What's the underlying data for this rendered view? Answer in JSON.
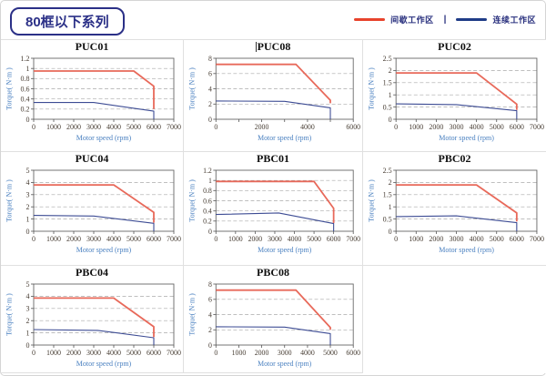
{
  "page": {
    "title": "80框以下系列"
  },
  "legend": {
    "separator": "|",
    "items": [
      {
        "label": "间歇工作区",
        "color": "#e8432c"
      },
      {
        "label": "连续工作区",
        "color": "#1f3c87"
      }
    ]
  },
  "axis_labels": {
    "x": "Motor speed (rpm)",
    "y": "Torque( N·m )"
  },
  "colors": {
    "accent_navy": "#2b3087",
    "intermittent_line": "#e8695a",
    "continuous_line": "#3d4c94",
    "cell_border": "#e0e0e0",
    "grid_dash": "#aaaaaa",
    "tick_text": "#473d33",
    "axis_label_text": "#4a80c0"
  },
  "chart_data": [
    {
      "type": "line",
      "title": "PUC01",
      "title_cursor": false,
      "xlabel": "Motor speed (rpm)",
      "ylabel": "Torque( N·m )",
      "xlim": [
        0,
        7000
      ],
      "ylim": [
        0,
        1.2
      ],
      "xminor_step": 1000,
      "xticks": [
        0,
        1000,
        2000,
        3000,
        4000,
        5000,
        6000,
        7000
      ],
      "xtick_labels": [
        "0",
        "1000",
        "2000",
        "3000",
        "4000",
        "5000",
        "6000",
        "7000"
      ],
      "yticks": [
        0,
        0.2,
        0.4,
        0.6,
        0.8,
        1,
        1.2
      ],
      "ytick_labels": [
        "0",
        "0.2",
        "0.4",
        "0.6",
        "0.8",
        "1",
        "1.2"
      ],
      "grid": "horizontal-dashed",
      "legend_position": "none",
      "series": [
        {
          "name": "间歇工作区",
          "color": "#e8695a",
          "width": 1.8,
          "points": [
            [
              0,
              0.95
            ],
            [
              5000,
              0.95
            ],
            [
              6000,
              0.65
            ],
            [
              6000,
              0.2
            ]
          ]
        },
        {
          "name": "连续工作区",
          "color": "#3d4c94",
          "width": 1.1,
          "points": [
            [
              0,
              0.33
            ],
            [
              3000,
              0.33
            ],
            [
              6000,
              0.16
            ],
            [
              6000,
              0
            ]
          ]
        }
      ]
    },
    {
      "type": "line",
      "title": "PUC08",
      "title_cursor": true,
      "xlabel": "Motor speed (rpm)",
      "ylabel": "Torque( N·m )",
      "xlim": [
        0,
        6000
      ],
      "ylim": [
        0,
        8
      ],
      "xminor_step": 1000,
      "xticks": [
        0,
        2000,
        4000,
        6000
      ],
      "xtick_labels": [
        "0",
        "2000",
        "4000",
        "6000"
      ],
      "yticks": [
        0,
        2,
        4,
        6,
        8
      ],
      "ytick_labels": [
        "0",
        "2",
        "4",
        "6",
        "8"
      ],
      "grid": "horizontal-dashed",
      "legend_position": "none",
      "series": [
        {
          "name": "间歇工作区",
          "color": "#e8695a",
          "width": 1.8,
          "points": [
            [
              0,
              7.2
            ],
            [
              3500,
              7.2
            ],
            [
              5000,
              2.5
            ],
            [
              5000,
              2.1
            ]
          ]
        },
        {
          "name": "连续工作区",
          "color": "#3d4c94",
          "width": 1.1,
          "points": [
            [
              0,
              2.4
            ],
            [
              3000,
              2.35
            ],
            [
              5000,
              1.5
            ],
            [
              5000,
              0
            ]
          ]
        }
      ]
    },
    {
      "type": "line",
      "title": "PUC02",
      "title_cursor": false,
      "xlabel": "Motor speed (rpm)",
      "ylabel": "Torque( N·m )",
      "xlim": [
        0,
        7000
      ],
      "ylim": [
        0,
        2.5
      ],
      "xminor_step": 1000,
      "xticks": [
        0,
        1000,
        2000,
        3000,
        4000,
        5000,
        6000,
        7000
      ],
      "xtick_labels": [
        "0",
        "1000",
        "2000",
        "3000",
        "4000",
        "5000",
        "6000",
        "7000"
      ],
      "yticks": [
        0,
        0.5,
        1,
        1.5,
        2,
        2.5
      ],
      "ytick_labels": [
        "0",
        "0.5",
        "1",
        "1.5",
        "2",
        "2.5"
      ],
      "grid": "horizontal-dashed",
      "legend_position": "none",
      "series": [
        {
          "name": "间歇工作区",
          "color": "#e8695a",
          "width": 1.8,
          "points": [
            [
              0,
              1.9
            ],
            [
              4000,
              1.9
            ],
            [
              6000,
              0.62
            ],
            [
              6000,
              0.38
            ]
          ]
        },
        {
          "name": "连续工作区",
          "color": "#3d4c94",
          "width": 1.1,
          "points": [
            [
              0,
              0.63
            ],
            [
              3000,
              0.6
            ],
            [
              6000,
              0.35
            ],
            [
              6000,
              0
            ]
          ]
        }
      ]
    },
    {
      "type": "line",
      "title": "PUC04",
      "title_cursor": false,
      "xlabel": "Motor speed (rpm)",
      "ylabel": "Torque( N·m )",
      "xlim": [
        0,
        7000
      ],
      "ylim": [
        0,
        5
      ],
      "xminor_step": 1000,
      "xticks": [
        0,
        1000,
        2000,
        3000,
        4000,
        5000,
        6000,
        7000
      ],
      "xtick_labels": [
        "0",
        "1000",
        "2000",
        "3000",
        "4000",
        "5000",
        "6000",
        "7000"
      ],
      "yticks": [
        0,
        1,
        2,
        3,
        4,
        5
      ],
      "ytick_labels": [
        "0",
        "1",
        "2",
        "3",
        "4",
        "5"
      ],
      "grid": "horizontal-dashed",
      "legend_position": "none",
      "series": [
        {
          "name": "间歇工作区",
          "color": "#e8695a",
          "width": 1.8,
          "points": [
            [
              0,
              3.8
            ],
            [
              4000,
              3.8
            ],
            [
              6000,
              1.55
            ],
            [
              6000,
              0.7
            ]
          ]
        },
        {
          "name": "连续工作区",
          "color": "#3d4c94",
          "width": 1.1,
          "points": [
            [
              0,
              1.3
            ],
            [
              3000,
              1.25
            ],
            [
              6000,
              0.65
            ],
            [
              6000,
              0
            ]
          ]
        }
      ]
    },
    {
      "type": "line",
      "title": "PBC01",
      "title_cursor": false,
      "xlabel": "Motor speed (rpm)",
      "ylabel": "Torque( N·m )",
      "xlim": [
        0,
        7000
      ],
      "ylim": [
        0,
        1.2
      ],
      "xminor_step": 1000,
      "xticks": [
        0,
        1000,
        2000,
        3000,
        4000,
        5000,
        6000,
        7000
      ],
      "xtick_labels": [
        "0",
        "1000",
        "2000",
        "3000",
        "4000",
        "5000",
        "6000",
        "7000"
      ],
      "yticks": [
        0,
        0.2,
        0.4,
        0.6,
        0.8,
        1,
        1.2
      ],
      "ytick_labels": [
        "0",
        "0.2",
        "0.4",
        "0.6",
        "0.8",
        "1",
        "1.2"
      ],
      "grid": "horizontal-dashed",
      "legend_position": "none",
      "series": [
        {
          "name": "间歇工作区",
          "color": "#e8695a",
          "width": 1.8,
          "points": [
            [
              0,
              0.98
            ],
            [
              5000,
              0.98
            ],
            [
              6000,
              0.45
            ],
            [
              6000,
              0.16
            ]
          ]
        },
        {
          "name": "连续工作区",
          "color": "#3d4c94",
          "width": 1.1,
          "points": [
            [
              0,
              0.33
            ],
            [
              3200,
              0.36
            ],
            [
              6000,
              0.15
            ],
            [
              6000,
              0
            ]
          ]
        }
      ]
    },
    {
      "type": "line",
      "title": "PBC02",
      "title_cursor": false,
      "xlabel": "Motor speed (rpm)",
      "ylabel": "Torque( N·m )",
      "xlim": [
        0,
        7000
      ],
      "ylim": [
        0,
        2.5
      ],
      "xminor_step": 1000,
      "xticks": [
        0,
        1000,
        2000,
        3000,
        4000,
        5000,
        6000,
        7000
      ],
      "xtick_labels": [
        "0",
        "1000",
        "2000",
        "3000",
        "4000",
        "5000",
        "6000",
        "7000"
      ],
      "yticks": [
        0,
        0.5,
        1,
        1.5,
        2,
        2.5
      ],
      "ytick_labels": [
        "0",
        "0.5",
        "1",
        "1.5",
        "2",
        "2.5"
      ],
      "grid": "horizontal-dashed",
      "legend_position": "none",
      "series": [
        {
          "name": "间歇工作区",
          "color": "#e8695a",
          "width": 1.8,
          "points": [
            [
              0,
              1.9
            ],
            [
              4000,
              1.9
            ],
            [
              6000,
              0.75
            ],
            [
              6000,
              0.4
            ]
          ]
        },
        {
          "name": "连续工作区",
          "color": "#3d4c94",
          "width": 1.1,
          "points": [
            [
              0,
              0.6
            ],
            [
              3000,
              0.63
            ],
            [
              6000,
              0.35
            ],
            [
              6000,
              0
            ]
          ]
        }
      ]
    },
    {
      "type": "line",
      "title": "PBC04",
      "title_cursor": false,
      "xlabel": "Motor speed (rpm)",
      "ylabel": "Torque( N·m )",
      "xlim": [
        0,
        7000
      ],
      "ylim": [
        0,
        5
      ],
      "xminor_step": 1000,
      "xticks": [
        0,
        1000,
        2000,
        3000,
        4000,
        5000,
        6000,
        7000
      ],
      "xtick_labels": [
        "0",
        "1000",
        "2000",
        "3000",
        "4000",
        "5000",
        "6000",
        "7000"
      ],
      "yticks": [
        0,
        1,
        2,
        3,
        4,
        5
      ],
      "ytick_labels": [
        "0",
        "1",
        "2",
        "3",
        "4",
        "5"
      ],
      "grid": "horizontal-dashed",
      "legend_position": "none",
      "series": [
        {
          "name": "间歇工作区",
          "color": "#e8695a",
          "width": 1.8,
          "points": [
            [
              0,
              3.85
            ],
            [
              4000,
              3.85
            ],
            [
              6000,
              1.5
            ],
            [
              6000,
              0.65
            ]
          ]
        },
        {
          "name": "连续工作区",
          "color": "#3d4c94",
          "width": 1.1,
          "points": [
            [
              0,
              1.27
            ],
            [
              3200,
              1.2
            ],
            [
              6000,
              0.6
            ],
            [
              6000,
              0
            ]
          ]
        }
      ]
    },
    {
      "type": "line",
      "title": "PBC08",
      "title_cursor": false,
      "xlabel": "Motor speed (rpm)",
      "ylabel": "Torque( N·m )",
      "xlim": [
        0,
        6000
      ],
      "ylim": [
        0,
        8
      ],
      "xminor_step": 1000,
      "xticks": [
        0,
        1000,
        2000,
        3000,
        4000,
        5000,
        6000
      ],
      "xtick_labels": [
        "0",
        "1000",
        "2000",
        "3000",
        "4000",
        "5000",
        "6000"
      ],
      "yticks": [
        0,
        2,
        4,
        6,
        8
      ],
      "ytick_labels": [
        "0",
        "2",
        "4",
        "6",
        "8"
      ],
      "grid": "horizontal-dashed",
      "legend_position": "none",
      "series": [
        {
          "name": "间歇工作区",
          "color": "#e8695a",
          "width": 1.8,
          "points": [
            [
              0,
              7.2
            ],
            [
              3500,
              7.2
            ],
            [
              5000,
              2.3
            ],
            [
              5000,
              2.0
            ]
          ]
        },
        {
          "name": "连续工作区",
          "color": "#3d4c94",
          "width": 1.1,
          "points": [
            [
              0,
              2.4
            ],
            [
              3000,
              2.35
            ],
            [
              5000,
              1.5
            ],
            [
              5000,
              0
            ]
          ]
        }
      ]
    }
  ]
}
